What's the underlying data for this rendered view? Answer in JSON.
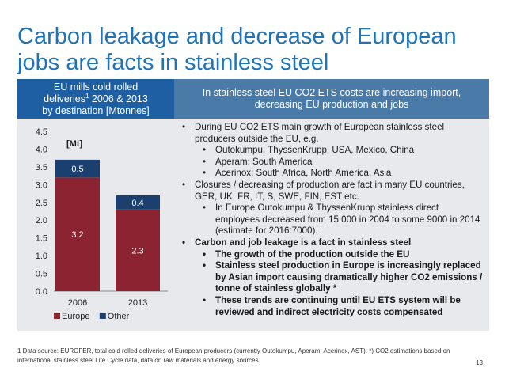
{
  "title": "Carbon leakage and decrease of European jobs are facts in stainless steel",
  "left_header": {
    "line1": "EU mills cold rolled",
    "line2a": "deliveries",
    "line2sup": "1",
    "line2b": " 2006 & 2013",
    "line3": "by destination [Mtonnes]"
  },
  "right_header": "In stainless steel EU CO2 ETS costs are increasing import, decreasing EU production and jobs",
  "chart_data": {
    "type": "bar",
    "stacked": true,
    "categories": [
      "2006",
      "2013"
    ],
    "series": [
      {
        "name": "Europe",
        "values": [
          3.2,
          2.3
        ],
        "color": "#8c2331"
      },
      {
        "name": "Other",
        "values": [
          0.5,
          0.4
        ],
        "color": "#1b3f6e"
      }
    ],
    "ylim": [
      0,
      4.5
    ],
    "yticks": [
      "0.0",
      "0.5",
      "1.0",
      "1.5",
      "2.0",
      "2.5",
      "3.0",
      "3.5",
      "4.0",
      "4.5"
    ],
    "unit_label": "[Mt]",
    "legend_position": "bottom",
    "grid": false
  },
  "bullets": [
    {
      "level": 1,
      "bold": false,
      "text": "During EU CO2 ETS main growth of European stainless steel producers outside the EU, e.g."
    },
    {
      "level": 2,
      "bold": false,
      "text": "Outokumpu, ThyssenKrupp: USA, Mexico, China"
    },
    {
      "level": 2,
      "bold": false,
      "text": "Aperam: South America"
    },
    {
      "level": 2,
      "bold": false,
      "text": "Acerinox: South Africa, North America, Asia"
    },
    {
      "level": 1,
      "bold": false,
      "text": "Closures / decreasing of production are fact in many EU countries, GER, UK, FR, IT, S, SWE, FIN, EST etc."
    },
    {
      "level": 2,
      "bold": false,
      "text": "In Europe Outokumpu & ThyssenKrupp stainless direct employees decreased from 15 000 in 2004 to some 9000 in 2014 (estimate for 2016:7000)."
    },
    {
      "level": 1,
      "bold": true,
      "text": "Carbon and job leakage is a fact in stainless steel"
    },
    {
      "level": 2,
      "bold": true,
      "text": "The growth of the production outside the EU"
    },
    {
      "level": 2,
      "bold": true,
      "text": "Stainless steel production in Europe is increasingly replaced by Asian import causing dramatically higher CO2 emissions  / tonne of stainless globally *"
    },
    {
      "level": 2,
      "bold": true,
      "text": "These trends are continuing until EU ETS system will be reviewed and indirect electricity costs compensated"
    }
  ],
  "footnote": "1 Data source: EUROFER, total cold rolled deliveries of European producers (currently Outokumpu, Aperam, Acerinox, AST). *) CO2 estimations based on international stainless steel Life Cycle data, data on raw materials and energy sources",
  "page_number": "13"
}
